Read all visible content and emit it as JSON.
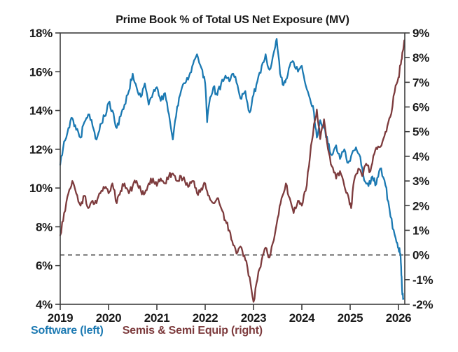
{
  "title": "Prime Book % of Total US Net Exposure (MV)",
  "legend": {
    "software_label": "Software (left)",
    "semis_label": "Semis & Semi Equip (right)"
  },
  "colors": {
    "software_blue": "#1b79b2",
    "semis_maroon": "#7d3b3d",
    "axis": "#3d3d3d",
    "text": "#1a1a1a",
    "background": "#ffffff"
  },
  "chart_data": {
    "type": "line",
    "title": "Prime Book % of Total US Net Exposure (MV)",
    "grid": false,
    "legend_position": "bottom-left",
    "x_axis": {
      "tick_labels": [
        "2019",
        "2020",
        "2021",
        "2022",
        "2023",
        "2024",
        "2025",
        "2026"
      ],
      "tick_values": [
        2019,
        2020,
        2021,
        2022,
        2023,
        2024,
        2025,
        2026
      ]
    },
    "left_axis": {
      "min": 4,
      "max": 18,
      "tick_step": 2,
      "tick_labels": [
        "4%",
        "6%",
        "8%",
        "10%",
        "12%",
        "14%",
        "16%",
        "18%"
      ]
    },
    "right_axis": {
      "min": -2,
      "max": 9,
      "tick_step": 1,
      "tick_labels": [
        "-2%",
        "-1%",
        "0%",
        "1%",
        "2%",
        "3%",
        "4%",
        "5%",
        "6%",
        "7%",
        "8%",
        "9%"
      ]
    },
    "reference_line": {
      "axis": "right",
      "value": 0,
      "style": "dashed",
      "color": "#333333"
    },
    "series": [
      {
        "name": "Software (left)",
        "axis": "left",
        "color": "#1b79b2",
        "x": [
          2019.0,
          2019.08,
          2019.17,
          2019.25,
          2019.33,
          2019.42,
          2019.5,
          2019.58,
          2019.67,
          2019.75,
          2019.83,
          2019.92,
          2020.0,
          2020.08,
          2020.17,
          2020.25,
          2020.33,
          2020.42,
          2020.5,
          2020.58,
          2020.67,
          2020.75,
          2020.83,
          2020.92,
          2021.0,
          2021.08,
          2021.17,
          2021.25,
          2021.33,
          2021.42,
          2021.5,
          2021.58,
          2021.67,
          2021.75,
          2021.83,
          2021.92,
          2022.0,
          2022.04,
          2022.08,
          2022.17,
          2022.25,
          2022.33,
          2022.42,
          2022.5,
          2022.58,
          2022.67,
          2022.75,
          2022.83,
          2022.92,
          2023.0,
          2023.08,
          2023.17,
          2023.25,
          2023.33,
          2023.42,
          2023.48,
          2023.55,
          2023.62,
          2023.67,
          2023.75,
          2023.83,
          2023.92,
          2024.0,
          2024.08,
          2024.17,
          2024.25,
          2024.31,
          2024.38,
          2024.46,
          2024.54,
          2024.62,
          2024.71,
          2024.79,
          2024.88,
          2024.96,
          2025.04,
          2025.12,
          2025.21,
          2025.29,
          2025.38,
          2025.46,
          2025.54,
          2025.62,
          2025.71,
          2025.79,
          2025.88,
          2025.96,
          2026.0,
          2026.04,
          2026.06,
          2026.08,
          2026.1
        ],
        "y": [
          11.2,
          12.4,
          13.1,
          13.6,
          13.0,
          12.6,
          13.4,
          13.8,
          13.2,
          12.5,
          13.3,
          13.7,
          14.4,
          14.0,
          13.1,
          13.7,
          14.3,
          15.0,
          15.9,
          15.2,
          14.7,
          15.4,
          14.3,
          14.9,
          15.2,
          14.5,
          14.9,
          13.8,
          12.5,
          14.2,
          15.0,
          15.4,
          15.8,
          16.4,
          16.9,
          16.2,
          15.4,
          13.4,
          14.3,
          15.2,
          14.8,
          15.4,
          15.8,
          15.5,
          15.9,
          15.3,
          14.6,
          15.0,
          13.9,
          14.8,
          15.5,
          16.3,
          16.9,
          16.1,
          17.0,
          17.7,
          15.9,
          15.3,
          15.6,
          16.3,
          16.5,
          16.0,
          16.3,
          15.3,
          14.6,
          13.9,
          12.6,
          13.5,
          13.1,
          12.3,
          11.7,
          12.2,
          11.5,
          12.0,
          11.3,
          11.8,
          12.1,
          11.6,
          10.4,
          10.1,
          10.6,
          10.2,
          11.0,
          10.4,
          9.3,
          7.9,
          7.2,
          6.9,
          6.6,
          5.5,
          4.5,
          4.3
        ]
      },
      {
        "name": "Semis & Semi Equip (right)",
        "axis": "right",
        "color": "#7d3b3d",
        "x": [
          2019.0,
          2019.08,
          2019.17,
          2019.25,
          2019.33,
          2019.42,
          2019.5,
          2019.58,
          2019.67,
          2019.75,
          2019.83,
          2019.92,
          2020.0,
          2020.08,
          2020.17,
          2020.25,
          2020.33,
          2020.42,
          2020.5,
          2020.58,
          2020.67,
          2020.75,
          2020.83,
          2020.92,
          2021.0,
          2021.08,
          2021.17,
          2021.25,
          2021.33,
          2021.42,
          2021.5,
          2021.58,
          2021.67,
          2021.75,
          2021.83,
          2021.92,
          2022.0,
          2022.08,
          2022.17,
          2022.25,
          2022.33,
          2022.42,
          2022.5,
          2022.58,
          2022.67,
          2022.75,
          2022.83,
          2022.92,
          2023.0,
          2023.08,
          2023.17,
          2023.25,
          2023.33,
          2023.42,
          2023.5,
          2023.58,
          2023.67,
          2023.75,
          2023.83,
          2023.92,
          2024.0,
          2024.08,
          2024.17,
          2024.25,
          2024.31,
          2024.38,
          2024.46,
          2024.54,
          2024.62,
          2024.71,
          2024.79,
          2024.88,
          2024.96,
          2025.02,
          2025.08,
          2025.17,
          2025.25,
          2025.33,
          2025.42,
          2025.5,
          2025.58,
          2025.67,
          2025.75,
          2025.83,
          2025.92,
          2026.0,
          2026.04,
          2026.08,
          2026.12
        ],
        "y": [
          0.8,
          1.7,
          2.5,
          3.0,
          2.5,
          2.0,
          2.4,
          1.9,
          2.2,
          2.1,
          2.5,
          2.7,
          2.5,
          2.9,
          2.1,
          2.6,
          2.9,
          2.5,
          2.8,
          3.0,
          2.6,
          2.5,
          2.9,
          3.1,
          2.8,
          3.1,
          2.9,
          3.2,
          3.3,
          3.0,
          3.2,
          3.0,
          2.8,
          3.0,
          2.5,
          2.7,
          2.9,
          2.4,
          2.1,
          2.3,
          1.9,
          1.4,
          1.0,
          0.4,
          0.1,
          0.3,
          -0.2,
          -0.9,
          -1.9,
          -1.0,
          -0.2,
          0.3,
          -0.1,
          0.6,
          1.5,
          2.3,
          2.9,
          2.3,
          1.7,
          2.2,
          2.0,
          2.6,
          4.0,
          5.3,
          5.9,
          4.7,
          5.5,
          4.3,
          3.6,
          3.1,
          3.4,
          2.8,
          2.4,
          1.9,
          3.0,
          3.5,
          3.2,
          3.7,
          3.4,
          4.1,
          4.4,
          4.6,
          5.0,
          5.6,
          6.6,
          7.2,
          7.7,
          8.2,
          8.7
        ]
      }
    ]
  }
}
